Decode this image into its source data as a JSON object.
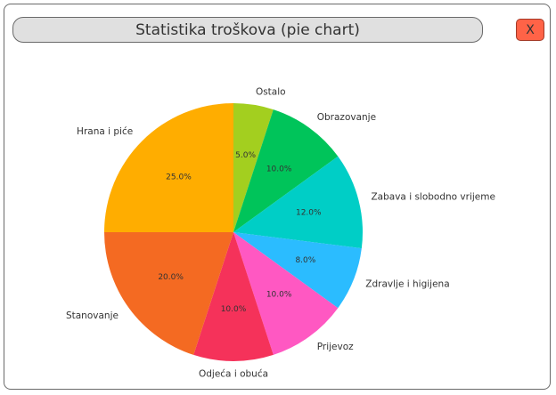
{
  "window": {
    "title": "Statistika troškova (pie chart)",
    "close_label": "X"
  },
  "chart_data": {
    "type": "pie",
    "title": "Statistika troškova (pie chart)",
    "start_angle_deg": 90,
    "direction": "clockwise",
    "slices": [
      {
        "label": "Ostalo",
        "value": 5.0,
        "pct_label": "5.0%",
        "color": "#a3cf1f"
      },
      {
        "label": "Obrazovanje",
        "value": 10.0,
        "pct_label": "10.0%",
        "color": "#00c45a"
      },
      {
        "label": "Zabava i slobodno vrijeme",
        "value": 12.0,
        "pct_label": "12.0%",
        "color": "#00cec6"
      },
      {
        "label": "Zdravlje i higijena",
        "value": 8.0,
        "pct_label": "8.0%",
        "color": "#2bbcff"
      },
      {
        "label": "Prijevoz",
        "value": 10.0,
        "pct_label": "10.0%",
        "color": "#ff58c2"
      },
      {
        "label": "Odjeća i obuća",
        "value": 10.0,
        "pct_label": "10.0%",
        "color": "#f5325a"
      },
      {
        "label": "Stanovanje",
        "value": 20.0,
        "pct_label": "20.0%",
        "color": "#f46a22"
      },
      {
        "label": "Hrana i piće",
        "value": 25.0,
        "pct_label": "25.0%",
        "color": "#ffad00"
      }
    ]
  }
}
